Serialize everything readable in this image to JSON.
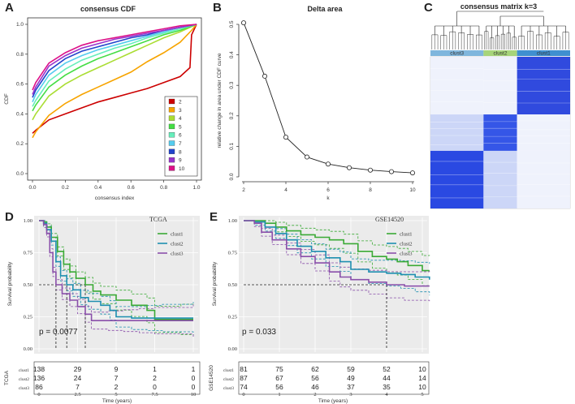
{
  "chart_data": [
    {
      "panel": "A",
      "type": "line",
      "title": "consensus CDF",
      "xlabel": "consensus index",
      "ylabel": "CDF",
      "xlim": [
        0,
        1
      ],
      "ylim": [
        0,
        1
      ],
      "xticks": [
        "0.0",
        "0.2",
        "0.4",
        "0.6",
        "0.8",
        "1.0"
      ],
      "yticks": [
        "0.0",
        "0.2",
        "0.4",
        "0.6",
        "0.8",
        "1.0"
      ],
      "legend_position": "bottom-right",
      "series": [
        {
          "name": "2",
          "color": "#cc0000",
          "p": [
            [
              0,
              0.27
            ],
            [
              0.02,
              0.29
            ],
            [
              0.1,
              0.36
            ],
            [
              0.2,
              0.4
            ],
            [
              0.3,
              0.44
            ],
            [
              0.4,
              0.48
            ],
            [
              0.5,
              0.51
            ],
            [
              0.6,
              0.54
            ],
            [
              0.7,
              0.57
            ],
            [
              0.8,
              0.61
            ],
            [
              0.9,
              0.65
            ],
            [
              0.96,
              0.71
            ],
            [
              0.97,
              0.93
            ],
            [
              1,
              1
            ]
          ]
        },
        {
          "name": "3",
          "color": "#f7a400",
          "p": [
            [
              0,
              0.24
            ],
            [
              0.02,
              0.28
            ],
            [
              0.1,
              0.39
            ],
            [
              0.2,
              0.47
            ],
            [
              0.3,
              0.53
            ],
            [
              0.4,
              0.58
            ],
            [
              0.5,
              0.63
            ],
            [
              0.6,
              0.68
            ],
            [
              0.7,
              0.75
            ],
            [
              0.8,
              0.81
            ],
            [
              0.9,
              0.88
            ],
            [
              0.97,
              0.96
            ],
            [
              1,
              1
            ]
          ]
        },
        {
          "name": "4",
          "color": "#aadd33",
          "p": [
            [
              0,
              0.36
            ],
            [
              0.02,
              0.4
            ],
            [
              0.1,
              0.52
            ],
            [
              0.2,
              0.6
            ],
            [
              0.3,
              0.66
            ],
            [
              0.4,
              0.71
            ],
            [
              0.5,
              0.76
            ],
            [
              0.6,
              0.81
            ],
            [
              0.7,
              0.86
            ],
            [
              0.8,
              0.91
            ],
            [
              0.9,
              0.95
            ],
            [
              1,
              1
            ]
          ]
        },
        {
          "name": "5",
          "color": "#44dd44",
          "p": [
            [
              0,
              0.42
            ],
            [
              0.02,
              0.46
            ],
            [
              0.1,
              0.58
            ],
            [
              0.2,
              0.66
            ],
            [
              0.3,
              0.72
            ],
            [
              0.4,
              0.77
            ],
            [
              0.5,
              0.81
            ],
            [
              0.6,
              0.85
            ],
            [
              0.7,
              0.89
            ],
            [
              0.8,
              0.93
            ],
            [
              0.9,
              0.96
            ],
            [
              1,
              1
            ]
          ]
        },
        {
          "name": "6",
          "color": "#66eebb",
          "p": [
            [
              0,
              0.45
            ],
            [
              0.02,
              0.49
            ],
            [
              0.1,
              0.62
            ],
            [
              0.2,
              0.7
            ],
            [
              0.3,
              0.76
            ],
            [
              0.4,
              0.8
            ],
            [
              0.5,
              0.84
            ],
            [
              0.6,
              0.87
            ],
            [
              0.7,
              0.91
            ],
            [
              0.8,
              0.94
            ],
            [
              0.9,
              0.97
            ],
            [
              1,
              1
            ]
          ]
        },
        {
          "name": "7",
          "color": "#55ccee",
          "p": [
            [
              0,
              0.48
            ],
            [
              0.02,
              0.53
            ],
            [
              0.1,
              0.66
            ],
            [
              0.2,
              0.74
            ],
            [
              0.3,
              0.79
            ],
            [
              0.4,
              0.83
            ],
            [
              0.5,
              0.86
            ],
            [
              0.6,
              0.89
            ],
            [
              0.7,
              0.92
            ],
            [
              0.8,
              0.95
            ],
            [
              0.9,
              0.98
            ],
            [
              1,
              1
            ]
          ]
        },
        {
          "name": "8",
          "color": "#2244cc",
          "p": [
            [
              0,
              0.51
            ],
            [
              0.02,
              0.56
            ],
            [
              0.1,
              0.69
            ],
            [
              0.2,
              0.77
            ],
            [
              0.3,
              0.82
            ],
            [
              0.4,
              0.85
            ],
            [
              0.5,
              0.88
            ],
            [
              0.6,
              0.91
            ],
            [
              0.7,
              0.93
            ],
            [
              0.8,
              0.96
            ],
            [
              0.9,
              0.98
            ],
            [
              1,
              1
            ]
          ]
        },
        {
          "name": "9",
          "color": "#9933cc",
          "p": [
            [
              0,
              0.53
            ],
            [
              0.02,
              0.58
            ],
            [
              0.1,
              0.72
            ],
            [
              0.2,
              0.79
            ],
            [
              0.3,
              0.84
            ],
            [
              0.4,
              0.87
            ],
            [
              0.5,
              0.9
            ],
            [
              0.6,
              0.92
            ],
            [
              0.7,
              0.94
            ],
            [
              0.8,
              0.96
            ],
            [
              0.9,
              0.98
            ],
            [
              1,
              1
            ]
          ]
        },
        {
          "name": "10",
          "color": "#dd1188",
          "p": [
            [
              0,
              0.56
            ],
            [
              0.02,
              0.61
            ],
            [
              0.1,
              0.74
            ],
            [
              0.2,
              0.81
            ],
            [
              0.3,
              0.86
            ],
            [
              0.4,
              0.89
            ],
            [
              0.5,
              0.91
            ],
            [
              0.6,
              0.93
            ],
            [
              0.7,
              0.95
            ],
            [
              0.8,
              0.97
            ],
            [
              0.9,
              0.99
            ],
            [
              1,
              1
            ]
          ]
        }
      ]
    },
    {
      "panel": "B",
      "type": "line",
      "title": "Delta area",
      "xlabel": "k",
      "ylabel": "relative change in area under CDF curve",
      "xlim": [
        2,
        10
      ],
      "ylim": [
        0,
        0.5
      ],
      "xticks": [
        "2",
        "4",
        "6",
        "8",
        "10"
      ],
      "yticks": [
        "0.0",
        "0.1",
        "0.2",
        "0.3",
        "0.4",
        "0.5"
      ],
      "x": [
        2,
        3,
        4,
        5,
        6,
        7,
        8,
        9,
        10
      ],
      "values": [
        0.505,
        0.33,
        0.13,
        0.065,
        0.042,
        0.03,
        0.022,
        0.017,
        0.013
      ]
    },
    {
      "panel": "C",
      "type": "heatmap",
      "title": "consensus matrix k=3",
      "clusters": [
        {
          "name": "clust3",
          "color": "#7fb6dd",
          "fraction": 0.38
        },
        {
          "name": "clust2",
          "color": "#a6d47a",
          "fraction": 0.24
        },
        {
          "name": "clust1",
          "color": "#3f8fd0",
          "fraction": 0.38
        }
      ]
    },
    {
      "panel": "D",
      "type": "line",
      "title": "TCGA",
      "xlabel": "Time (years)",
      "ylabel": "Survival probability",
      "xlim": [
        0,
        10
      ],
      "ylim": [
        0,
        1
      ],
      "xticks": [
        "0",
        "2.5",
        "5",
        "7.5",
        "10"
      ],
      "yticks": [
        "0.00",
        "0.25",
        "0.50",
        "0.75",
        "1.00"
      ],
      "pvalue": "p = 0.0077",
      "legend": [
        "clust1",
        "clust2",
        "clust3"
      ],
      "series": [
        {
          "name": "clust1",
          "color": "#3aaa35",
          "p": [
            [
              0,
              1
            ],
            [
              0.3,
              0.99
            ],
            [
              0.5,
              0.95
            ],
            [
              0.8,
              0.87
            ],
            [
              1.2,
              0.76
            ],
            [
              1.6,
              0.66
            ],
            [
              2.0,
              0.6
            ],
            [
              2.4,
              0.55
            ],
            [
              3.0,
              0.5
            ],
            [
              3.5,
              0.45
            ],
            [
              4.0,
              0.42
            ],
            [
              5.0,
              0.38
            ],
            [
              6.0,
              0.34
            ],
            [
              7.0,
              0.3
            ],
            [
              7.5,
              0.23
            ],
            [
              9.2,
              0.23
            ],
            [
              10,
              0.23
            ]
          ]
        },
        {
          "name": "clust2",
          "color": "#1e8fb0",
          "p": [
            [
              0,
              1
            ],
            [
              0.3,
              0.98
            ],
            [
              0.5,
              0.93
            ],
            [
              0.8,
              0.84
            ],
            [
              1.1,
              0.68
            ],
            [
              1.4,
              0.57
            ],
            [
              1.8,
              0.5
            ],
            [
              2.2,
              0.46
            ],
            [
              2.7,
              0.4
            ],
            [
              3.2,
              0.37
            ],
            [
              4.0,
              0.34
            ],
            [
              4.6,
              0.3
            ],
            [
              5.0,
              0.25
            ],
            [
              6.0,
              0.24
            ],
            [
              7.0,
              0.24
            ],
            [
              8.0,
              0.24
            ],
            [
              10,
              0.24
            ]
          ]
        },
        {
          "name": "clust3",
          "color": "#8a4faa",
          "p": [
            [
              0,
              1
            ],
            [
              0.3,
              0.97
            ],
            [
              0.5,
              0.9
            ],
            [
              0.7,
              0.75
            ],
            [
              0.9,
              0.6
            ],
            [
              1.1,
              0.5
            ],
            [
              1.5,
              0.43
            ],
            [
              2.0,
              0.38
            ],
            [
              2.5,
              0.33
            ],
            [
              3.0,
              0.27
            ],
            [
              3.4,
              0.22
            ],
            [
              4.5,
              0.22
            ],
            [
              5.5,
              0.22
            ],
            [
              6.5,
              0.22
            ],
            [
              7.5,
              0.22
            ],
            [
              10,
              0.22
            ]
          ]
        }
      ],
      "risk_table": {
        "label": "TCGA",
        "rows": [
          {
            "name": "clust1",
            "values": [
              "138",
              "29",
              "9",
              "1",
              "1"
            ]
          },
          {
            "name": "clust2",
            "values": [
              "136",
              "24",
              "7",
              "2",
              "0"
            ]
          },
          {
            "name": "clust3",
            "values": [
              "86",
              "7",
              "2",
              "0",
              "0"
            ]
          }
        ]
      }
    },
    {
      "panel": "E",
      "type": "line",
      "title": "GSE14520",
      "xlabel": "Time (years)",
      "ylabel": "Survival probability",
      "xlim": [
        0,
        5
      ],
      "ylim": [
        0,
        1
      ],
      "xticks": [
        "0",
        "1",
        "2",
        "3",
        "4",
        "5"
      ],
      "yticks": [
        "0.00",
        "0.25",
        "0.50",
        "0.75",
        "1.00"
      ],
      "pvalue": "p = 0.033",
      "legend": [
        "clust1",
        "clust2",
        "clust3"
      ],
      "series": [
        {
          "name": "clust1",
          "color": "#3aaa35",
          "p": [
            [
              0,
              1
            ],
            [
              0.4,
              1
            ],
            [
              0.6,
              0.98
            ],
            [
              0.9,
              0.95
            ],
            [
              1.2,
              0.92
            ],
            [
              1.6,
              0.89
            ],
            [
              2.0,
              0.87
            ],
            [
              2.4,
              0.85
            ],
            [
              2.8,
              0.82
            ],
            [
              3.2,
              0.76
            ],
            [
              3.6,
              0.72
            ],
            [
              4.0,
              0.7
            ],
            [
              4.3,
              0.68
            ],
            [
              4.6,
              0.65
            ],
            [
              5.0,
              0.61
            ],
            [
              5.2,
              0.61
            ]
          ]
        },
        {
          "name": "clust2",
          "color": "#1e8fb0",
          "p": [
            [
              0,
              1
            ],
            [
              0.3,
              0.99
            ],
            [
              0.6,
              0.95
            ],
            [
              0.9,
              0.9
            ],
            [
              1.2,
              0.85
            ],
            [
              1.5,
              0.8
            ],
            [
              1.9,
              0.76
            ],
            [
              2.3,
              0.71
            ],
            [
              2.7,
              0.68
            ],
            [
              3.0,
              0.62
            ],
            [
              3.5,
              0.6
            ],
            [
              4.0,
              0.59
            ],
            [
              4.4,
              0.58
            ],
            [
              4.8,
              0.56
            ],
            [
              5.2,
              0.54
            ]
          ]
        },
        {
          "name": "clust3",
          "color": "#8a4faa",
          "p": [
            [
              0,
              1
            ],
            [
              0.3,
              0.98
            ],
            [
              0.5,
              0.91
            ],
            [
              0.8,
              0.85
            ],
            [
              1.2,
              0.78
            ],
            [
              1.6,
              0.72
            ],
            [
              2.0,
              0.67
            ],
            [
              2.4,
              0.6
            ],
            [
              2.7,
              0.56
            ],
            [
              3.0,
              0.54
            ],
            [
              3.5,
              0.52
            ],
            [
              4.0,
              0.5
            ],
            [
              4.5,
              0.49
            ],
            [
              5.2,
              0.49
            ]
          ]
        }
      ],
      "risk_table": {
        "label": "GSE14520",
        "rows": [
          {
            "name": "clust1",
            "values": [
              "81",
              "75",
              "62",
              "59",
              "52",
              "10"
            ]
          },
          {
            "name": "clust2",
            "values": [
              "87",
              "67",
              "56",
              "49",
              "44",
              "14"
            ]
          },
          {
            "name": "clust3",
            "values": [
              "74",
              "56",
              "46",
              "37",
              "35",
              "10"
            ]
          }
        ]
      }
    }
  ]
}
